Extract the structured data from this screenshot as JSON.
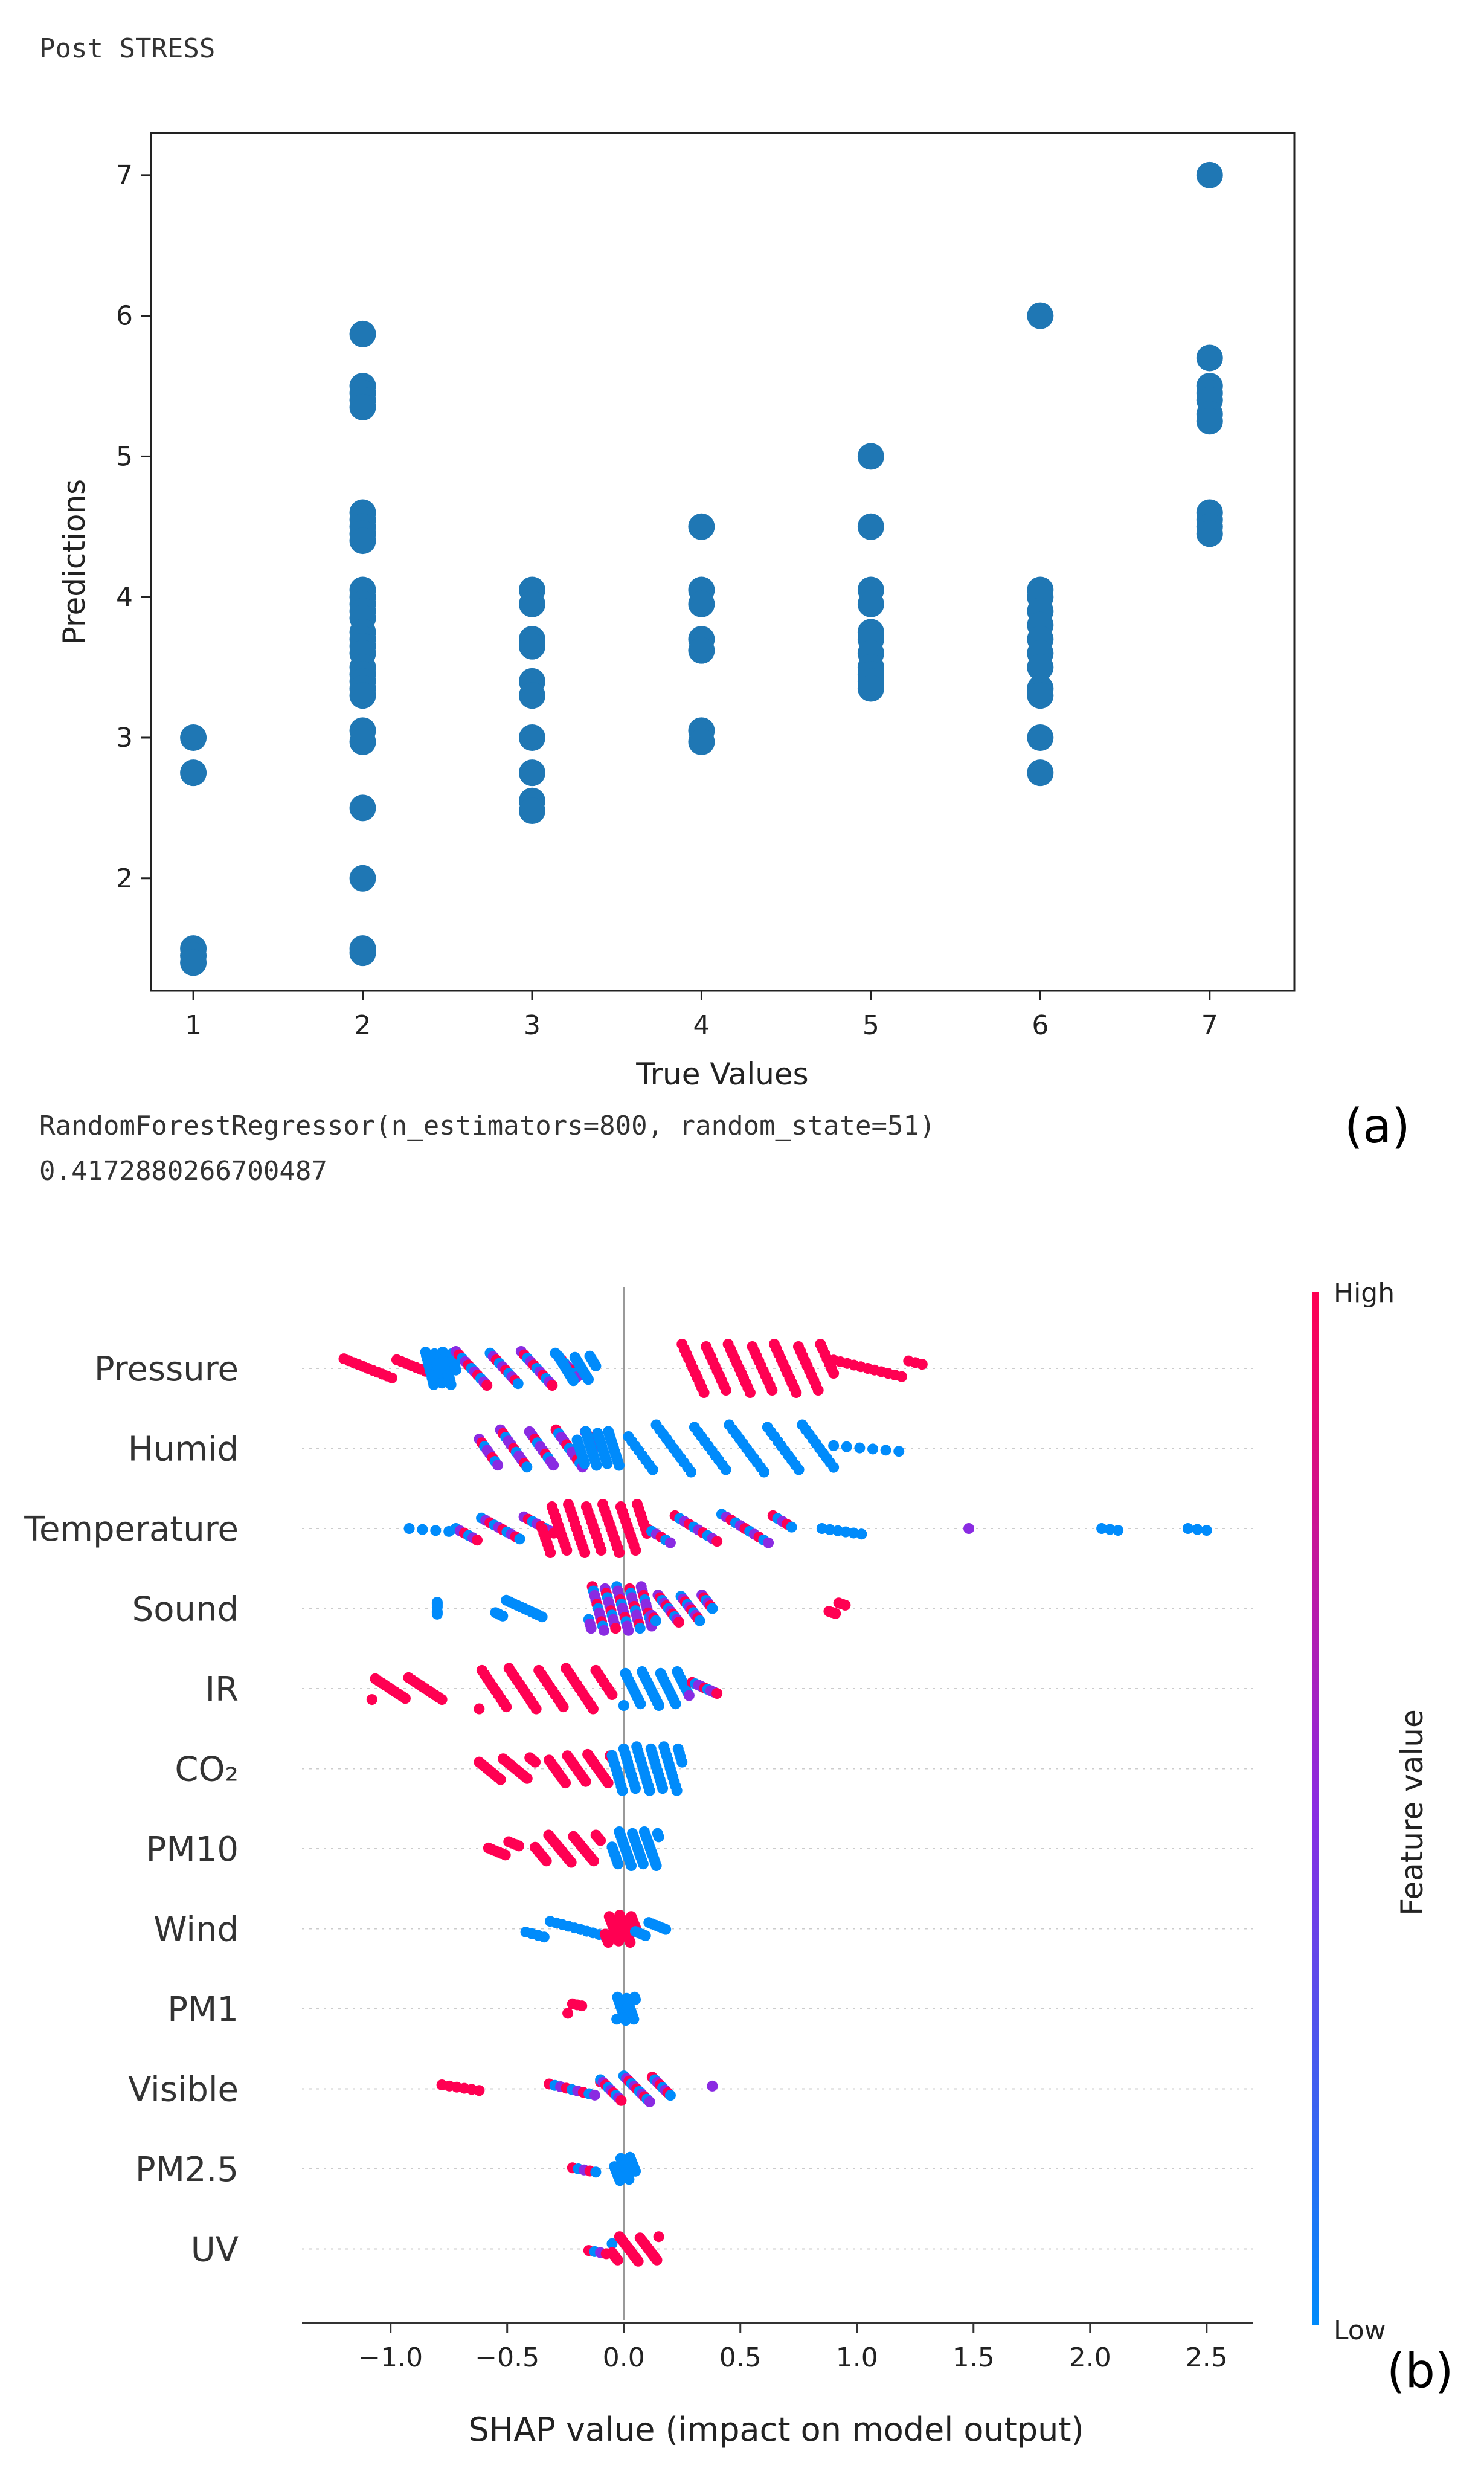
{
  "header": {
    "cell_title": "Post STRESS",
    "model_line": "RandomForestRegressor(n_estimators=800, random_state=51)",
    "score_line": "0.4172880266700487",
    "panel_a_label": "(a)",
    "panel_b_label": "(b)"
  },
  "colors": {
    "scatter": "#1f77b4",
    "shap_high": "#ff0052",
    "shap_mid": "#8a2be2",
    "shap_low": "#008bfb"
  },
  "chart_data": [
    {
      "type": "scatter",
      "xlabel": "True Values",
      "ylabel": "Predictions",
      "xlim": [
        0.75,
        7.5
      ],
      "ylim": [
        1.2,
        7.3
      ],
      "xticks": [
        "1",
        "2",
        "3",
        "4",
        "5",
        "6",
        "7"
      ],
      "yticks": [
        "2",
        "3",
        "4",
        "5",
        "6",
        "7"
      ],
      "points": [
        {
          "x": 1,
          "ys": [
            3.0,
            2.75,
            1.5,
            1.45,
            1.4
          ]
        },
        {
          "x": 2,
          "ys": [
            5.87,
            5.5,
            5.45,
            5.4,
            5.35,
            4.6,
            4.55,
            4.5,
            4.45,
            4.4,
            4.05,
            4.0,
            3.95,
            3.9,
            3.85,
            3.75,
            3.7,
            3.65,
            3.6,
            3.5,
            3.45,
            3.4,
            3.35,
            3.3,
            3.05,
            2.97,
            2.5,
            2.0,
            1.5,
            1.47
          ]
        },
        {
          "x": 3,
          "ys": [
            4.05,
            3.95,
            3.7,
            3.65,
            3.4,
            3.3,
            3.0,
            2.75,
            2.55,
            2.48
          ]
        },
        {
          "x": 4,
          "ys": [
            4.5,
            4.05,
            3.95,
            3.7,
            3.62,
            3.05,
            2.97
          ]
        },
        {
          "x": 5,
          "ys": [
            5.0,
            4.5,
            4.05,
            3.95,
            3.75,
            3.7,
            3.6,
            3.5,
            3.45,
            3.4,
            3.35
          ]
        },
        {
          "x": 6,
          "ys": [
            6.0,
            4.05,
            4.0,
            3.9,
            3.8,
            3.7,
            3.6,
            3.5,
            3.35,
            3.3,
            3.0,
            2.75
          ]
        },
        {
          "x": 7,
          "ys": [
            7.0,
            5.7,
            5.5,
            5.45,
            5.4,
            5.3,
            5.25,
            4.6,
            4.55,
            4.5,
            4.45
          ]
        }
      ]
    },
    {
      "type": "scatter",
      "subtype": "shap_beeswarm",
      "xlabel": "SHAP value (impact on model output)",
      "xlim": [
        -1.38,
        2.7
      ],
      "xticks": [
        "−1.0",
        "−0.5",
        "0.0",
        "0.5",
        "1.0",
        "1.5",
        "2.0",
        "2.5"
      ],
      "colorbar": {
        "label": "Feature value",
        "high": "High",
        "low": "Low"
      },
      "features": [
        {
          "name": "Pressure",
          "segments": [
            {
              "a": -1.2,
              "b": -0.85,
              "c": "high",
              "n": 18
            },
            {
              "a": -0.85,
              "b": -0.72,
              "c": "low",
              "n": 38
            },
            {
              "a": -0.72,
              "b": -0.2,
              "c": "mix",
              "n": 40
            },
            {
              "a": -0.28,
              "b": -0.12,
              "c": "low",
              "n": 26
            },
            {
              "a": 0.25,
              "b": 0.9,
              "c": "high",
              "n": 70
            },
            {
              "a": 0.9,
              "b": 1.28,
              "c": "high",
              "n": 14
            }
          ]
        },
        {
          "name": "Humid",
          "segments": [
            {
              "a": -0.62,
              "b": -0.12,
              "c": "mid",
              "n": 45
            },
            {
              "a": -0.2,
              "b": -0.02,
              "c": "low",
              "n": 40
            },
            {
              "a": 0.02,
              "b": 0.9,
              "c": "low",
              "n": 60
            },
            {
              "a": 0.9,
              "b": 1.18,
              "c": "low",
              "n": 6
            }
          ]
        },
        {
          "name": "Temperature",
          "segments": [
            {
              "a": -0.92,
              "b": -0.75,
              "c": "low",
              "n": 4
            },
            {
              "a": -0.72,
              "b": -0.3,
              "c": "mix",
              "n": 24
            },
            {
              "a": -0.35,
              "b": 0.1,
              "c": "high",
              "n": 65
            },
            {
              "a": 0.1,
              "b": 0.72,
              "c": "mix",
              "n": 32
            },
            {
              "a": 0.85,
              "b": 1.02,
              "c": "low",
              "n": 6
            },
            {
              "a": 1.48,
              "b": 1.48,
              "c": "mid",
              "n": 1
            },
            {
              "a": 2.05,
              "b": 2.12,
              "c": "low",
              "n": 3
            },
            {
              "a": 2.42,
              "b": 2.5,
              "c": "low",
              "n": 3
            }
          ]
        },
        {
          "name": "Sound",
          "segments": [
            {
              "a": -0.8,
              "b": -0.8,
              "c": "low",
              "n": 8
            },
            {
              "a": -0.55,
              "b": -0.35,
              "c": "low",
              "n": 14
            },
            {
              "a": -0.15,
              "b": 0.12,
              "c": "mid",
              "n": 55
            },
            {
              "a": 0.12,
              "b": 0.38,
              "c": "mix",
              "n": 30
            },
            {
              "a": 0.88,
              "b": 0.95,
              "c": "high",
              "n": 6
            }
          ]
        },
        {
          "name": "IR",
          "segments": [
            {
              "a": -1.08,
              "b": -0.78,
              "c": "high",
              "n": 22
            },
            {
              "a": -0.62,
              "b": -0.05,
              "c": "high",
              "n": 50
            },
            {
              "a": 0.0,
              "b": 0.28,
              "c": "low",
              "n": 40
            },
            {
              "a": 0.28,
              "b": 0.4,
              "c": "mid",
              "n": 10
            }
          ]
        },
        {
          "name": "CO₂",
          "segments": [
            {
              "a": -0.62,
              "b": -0.38,
              "c": "high",
              "n": 22
            },
            {
              "a": -0.32,
              "b": -0.05,
              "c": "high",
              "n": 32
            },
            {
              "a": -0.05,
              "b": 0.25,
              "c": "low",
              "n": 55
            }
          ]
        },
        {
          "name": "PM10",
          "segments": [
            {
              "a": -0.58,
              "b": -0.45,
              "c": "high",
              "n": 10
            },
            {
              "a": -0.38,
              "b": -0.1,
              "c": "high",
              "n": 30
            },
            {
              "a": -0.05,
              "b": 0.15,
              "c": "low",
              "n": 40
            }
          ]
        },
        {
          "name": "Wind",
          "segments": [
            {
              "a": -0.42,
              "b": -0.08,
              "c": "low",
              "n": 14
            },
            {
              "a": -0.08,
              "b": 0.05,
              "c": "high",
              "n": 30
            },
            {
              "a": 0.05,
              "b": 0.18,
              "c": "low",
              "n": 10
            }
          ]
        },
        {
          "name": "PM1",
          "segments": [
            {
              "a": -0.24,
              "b": -0.18,
              "c": "high",
              "n": 4
            },
            {
              "a": -0.03,
              "b": 0.05,
              "c": "low",
              "n": 24
            }
          ]
        },
        {
          "name": "Visible",
          "segments": [
            {
              "a": -0.78,
              "b": -0.62,
              "c": "high",
              "n": 6
            },
            {
              "a": -0.32,
              "b": -0.1,
              "c": "mix",
              "n": 10
            },
            {
              "a": -0.1,
              "b": 0.2,
              "c": "mix",
              "n": 28
            },
            {
              "a": 0.38,
              "b": 0.38,
              "c": "mid",
              "n": 1
            }
          ]
        },
        {
          "name": "PM2.5",
          "segments": [
            {
              "a": -0.22,
              "b": -0.12,
              "c": "mix",
              "n": 5
            },
            {
              "a": -0.04,
              "b": 0.05,
              "c": "low",
              "n": 24
            }
          ]
        },
        {
          "name": "UV",
          "segments": [
            {
              "a": -0.15,
              "b": -0.05,
              "c": "mix",
              "n": 5
            },
            {
              "a": -0.05,
              "b": 0.15,
              "c": "high",
              "n": 26
            }
          ]
        }
      ]
    }
  ]
}
